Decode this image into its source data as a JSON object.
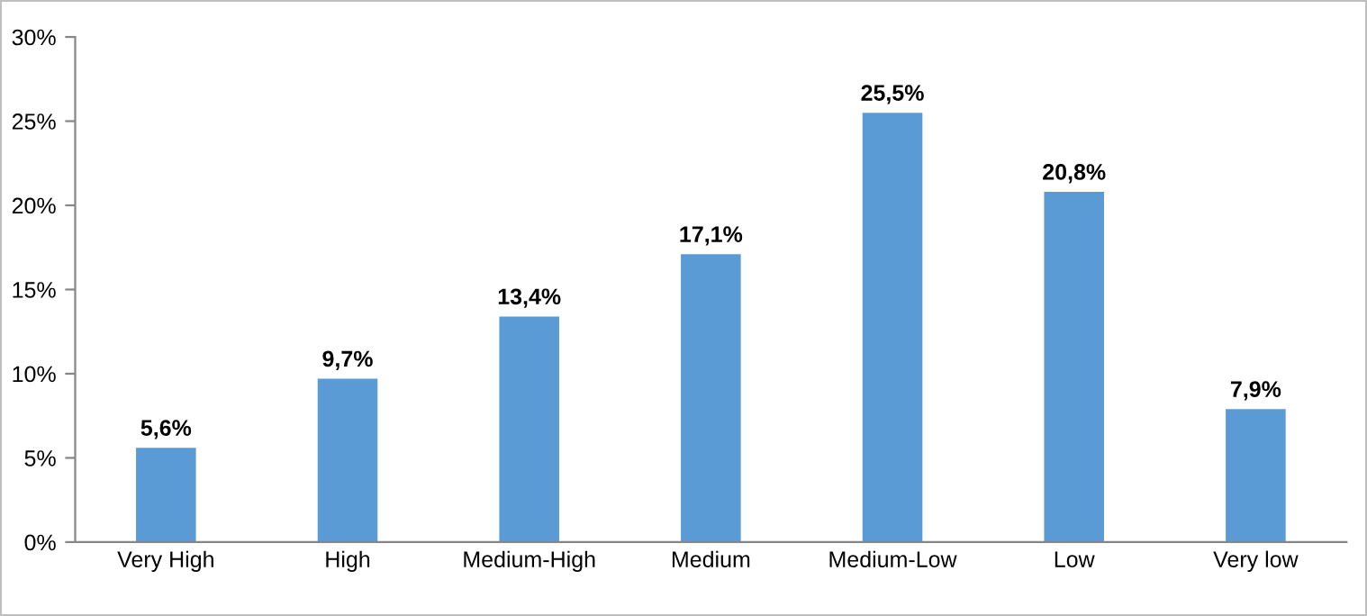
{
  "chart_data": {
    "type": "bar",
    "categories": [
      "Very High",
      "High",
      "Medium-High",
      "Medium",
      "Medium-Low",
      "Low",
      "Very low"
    ],
    "values": [
      5.6,
      9.7,
      13.4,
      17.1,
      25.5,
      20.8,
      7.9
    ],
    "value_labels": [
      "5,6%",
      "9,7%",
      "13,4%",
      "17,1%",
      "25,5%",
      "20,8%",
      "7,9%"
    ],
    "color": "#5b9bd5",
    "ylim": [
      0,
      30
    ],
    "yticks": [
      {
        "value": 0,
        "label": "0%"
      },
      {
        "value": 5,
        "label": "5%"
      },
      {
        "value": 10,
        "label": "10%"
      },
      {
        "value": 15,
        "label": "15%"
      },
      {
        "value": 20,
        "label": "20%"
      },
      {
        "value": 25,
        "label": "25%"
      },
      {
        "value": 30,
        "label": "30%"
      }
    ],
    "grid": false
  }
}
